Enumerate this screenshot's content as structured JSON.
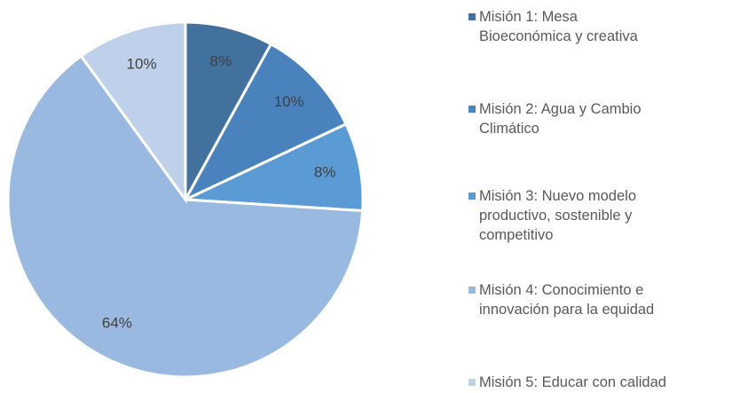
{
  "chart_data": {
    "type": "pie",
    "categories": [
      "Misión 1: Mesa Bioeconómica y creativa",
      "Misión 2: Agua y Cambio Climático",
      "Misión 3: Nuevo modelo productivo, sostenible y competitivo",
      "Misión 4: Conocimiento e innovación para la equidad",
      "Misión 5: Educar con calidad"
    ],
    "values": [
      8,
      10,
      8,
      64,
      10
    ],
    "value_labels": [
      "8%",
      "10%",
      "8%",
      "64%",
      "10%"
    ],
    "colors": [
      "#41719c",
      "#4a82bd",
      "#5b9bd5",
      "#9ab9e0",
      "#bfd1ea"
    ],
    "legend": "right"
  }
}
